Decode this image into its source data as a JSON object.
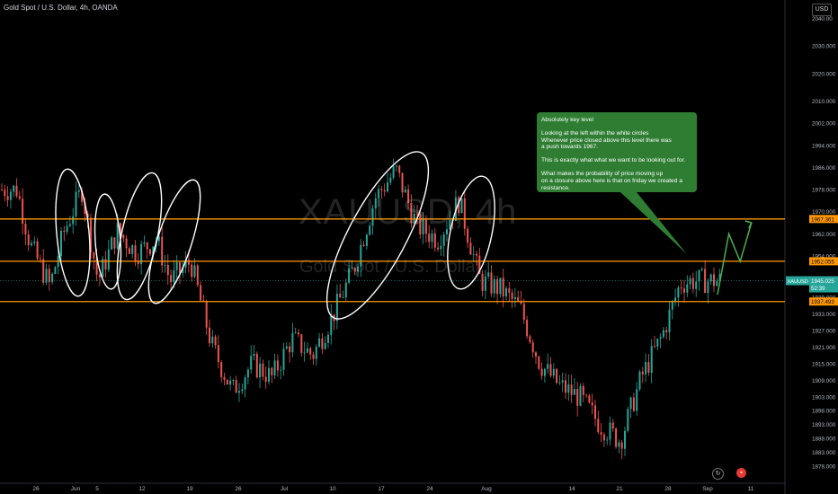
{
  "header": {
    "title": "Gold Spot / U.S. Dollar, 4h, OANDA",
    "currency": "USD"
  },
  "watermark": {
    "symbol": "XAUUSD, 4h",
    "name": "Gold Spot / U.S. Dollar"
  },
  "annotation": {
    "heading": "Absolutely key level",
    "p1": "Looking at the left within the white circles\nWhenever price closed above this level there was\na push towards 1967.",
    "p2": "This is exactly what what we want to be looking out for.",
    "p3": "What makes the probability of price moving up\non a closure above here is that on friday we created a\nresistance."
  },
  "colors": {
    "up": "#26a69a",
    "down": "#ef5350",
    "level": "#ff9800",
    "note": "#2e7d32",
    "arrow": "#4caf50",
    "current": "#26a69a"
  },
  "chart_data": {
    "type": "candlestick",
    "symbol": "XAUUSD",
    "timeframe": "4h",
    "ylim": [
      1875,
      2044
    ],
    "y_ticks": [
      "2040.00",
      "2030.000",
      "2020.000",
      "2010.000",
      "2002.000",
      "1994.000",
      "1986.000",
      "1978.000",
      "1970.000",
      "1962.000",
      "1954.000",
      "1946.000",
      "1939.000",
      "1933.000",
      "1927.000",
      "1921.000",
      "1915.000",
      "1909.000",
      "1903.000",
      "1898.000",
      "1893.000",
      "1888.000",
      "1883.000",
      "1878.000"
    ],
    "x_ticks": [
      "26",
      "Jun",
      "5",
      "12",
      "19",
      "26",
      "Jul",
      "10",
      "17",
      "24",
      "Aug",
      "14",
      "21",
      "28",
      "Sep",
      "11"
    ],
    "levels": [
      {
        "name": "resistance",
        "value": 1967.361,
        "label": "1967.361"
      },
      {
        "name": "key-level",
        "value": 1952.055,
        "label": "1952.055"
      },
      {
        "name": "support",
        "value": 1937.493,
        "label": "1937.493"
      }
    ],
    "current": {
      "symbol": "XAUUSD",
      "price": "1945.025",
      "countdown": "52:39"
    },
    "path_x": [
      "May 23",
      "May 25",
      "May 28",
      "May 30",
      "Jun 2",
      "Jun 5",
      "Jun 8",
      "Jun 11",
      "Jun 14",
      "Jun 16",
      "Jun 19",
      "Jun 22",
      "Jun 25",
      "Jun 28",
      "Jul 1",
      "Jul 4",
      "Jul 7",
      "Jul 10",
      "Jul 13",
      "Jul 16",
      "Jul 19",
      "Jul 22",
      "Jul 25",
      "Jul 28",
      "Jul 31",
      "Aug 3",
      "Aug 6",
      "Aug 9",
      "Aug 12",
      "Aug 15",
      "Aug 18",
      "Aug 21",
      "Aug 24",
      "Aug 27",
      "Aug 30",
      "Sep 1"
    ],
    "path_y": [
      1978,
      1958,
      1943,
      1962,
      1978,
      1945,
      1963,
      1955,
      1960,
      1945,
      1952,
      1922,
      1905,
      1915,
      1910,
      1924,
      1918,
      1933,
      1950,
      1975,
      1985,
      1965,
      1960,
      1974,
      1945,
      1942,
      1935,
      1915,
      1907,
      1903,
      1893,
      1887,
      1910,
      1925,
      1944,
      1945
    ],
    "forecast": [
      [
        "Sep 1",
        "1940"
      ],
      [
        "Sep 3",
        "1962"
      ],
      [
        "Sep 5",
        "1952"
      ],
      [
        "Sep 7",
        "1966"
      ]
    ]
  }
}
